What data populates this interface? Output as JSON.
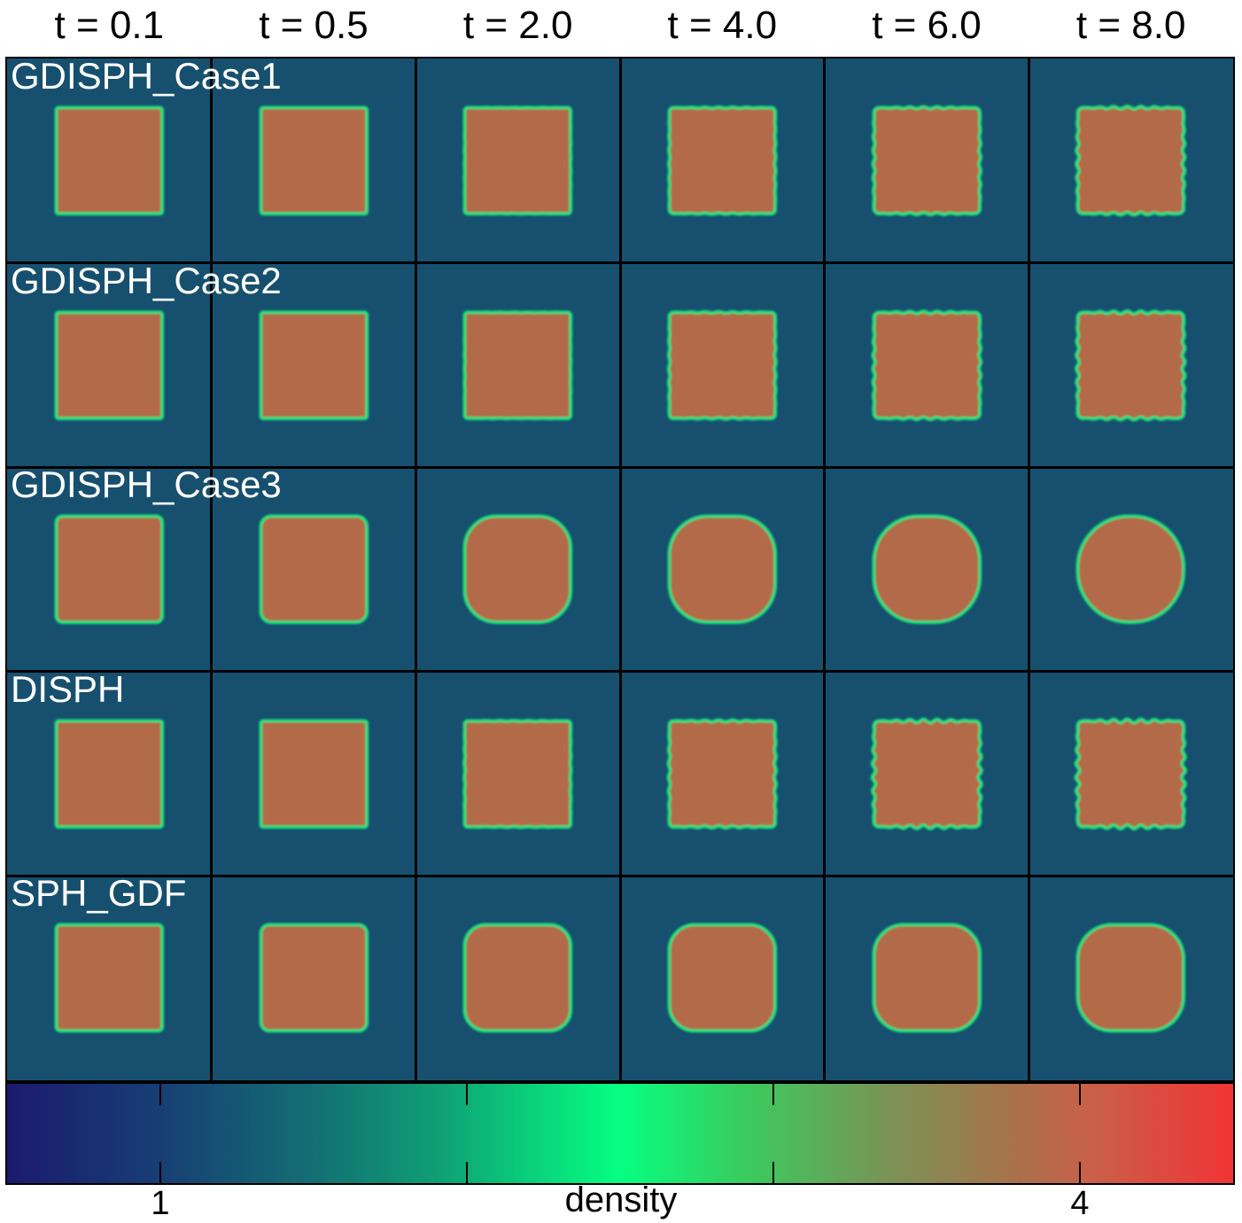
{
  "chart_data": {
    "type": "heatmap",
    "columns": [
      "t = 0.1",
      "t = 0.5",
      "t = 2.0",
      "t = 4.0",
      "t = 6.0",
      "t = 8.0"
    ],
    "rows": [
      "GDISPH_Case1",
      "GDISPH_Case2",
      "GDISPH_Case3",
      "DISPH",
      "SPH_GDF"
    ],
    "colorbar": {
      "label": "density",
      "tick_labels": [
        {
          "value": 1,
          "text": "1"
        },
        {
          "value": 4,
          "text": "4"
        }
      ],
      "tick_values": [
        1,
        2,
        3,
        4
      ],
      "range": [
        0.5,
        4.5
      ]
    },
    "panels": [
      {
        "row": "GDISPH_Case1",
        "corner_rounding": [
          0.02,
          0.02,
          0.03,
          0.04,
          0.05,
          0.05
        ],
        "edge_wiggle": [
          0,
          0,
          0.1,
          0.3,
          0.5,
          0.7
        ]
      },
      {
        "row": "GDISPH_Case2",
        "corner_rounding": [
          0.02,
          0.02,
          0.03,
          0.04,
          0.05,
          0.05
        ],
        "edge_wiggle": [
          0,
          0,
          0.1,
          0.35,
          0.55,
          0.75
        ]
      },
      {
        "row": "GDISPH_Case3",
        "corner_rounding": [
          0.06,
          0.1,
          0.3,
          0.36,
          0.42,
          0.48
        ],
        "edge_wiggle": [
          0,
          0,
          0,
          0,
          0,
          0
        ]
      },
      {
        "row": "DISPH",
        "corner_rounding": [
          0.02,
          0.02,
          0.03,
          0.04,
          0.05,
          0.05
        ],
        "edge_wiggle": [
          0,
          0,
          0.2,
          0.5,
          0.9,
          1.0
        ]
      },
      {
        "row": "SPH_GDF",
        "corner_rounding": [
          0.04,
          0.08,
          0.2,
          0.24,
          0.28,
          0.32
        ],
        "edge_wiggle": [
          0,
          0,
          0,
          0,
          0,
          0
        ]
      }
    ],
    "colors": {
      "background": "#17506f",
      "square_fill": "#b36a48",
      "interface": "#1fe07e"
    }
  }
}
